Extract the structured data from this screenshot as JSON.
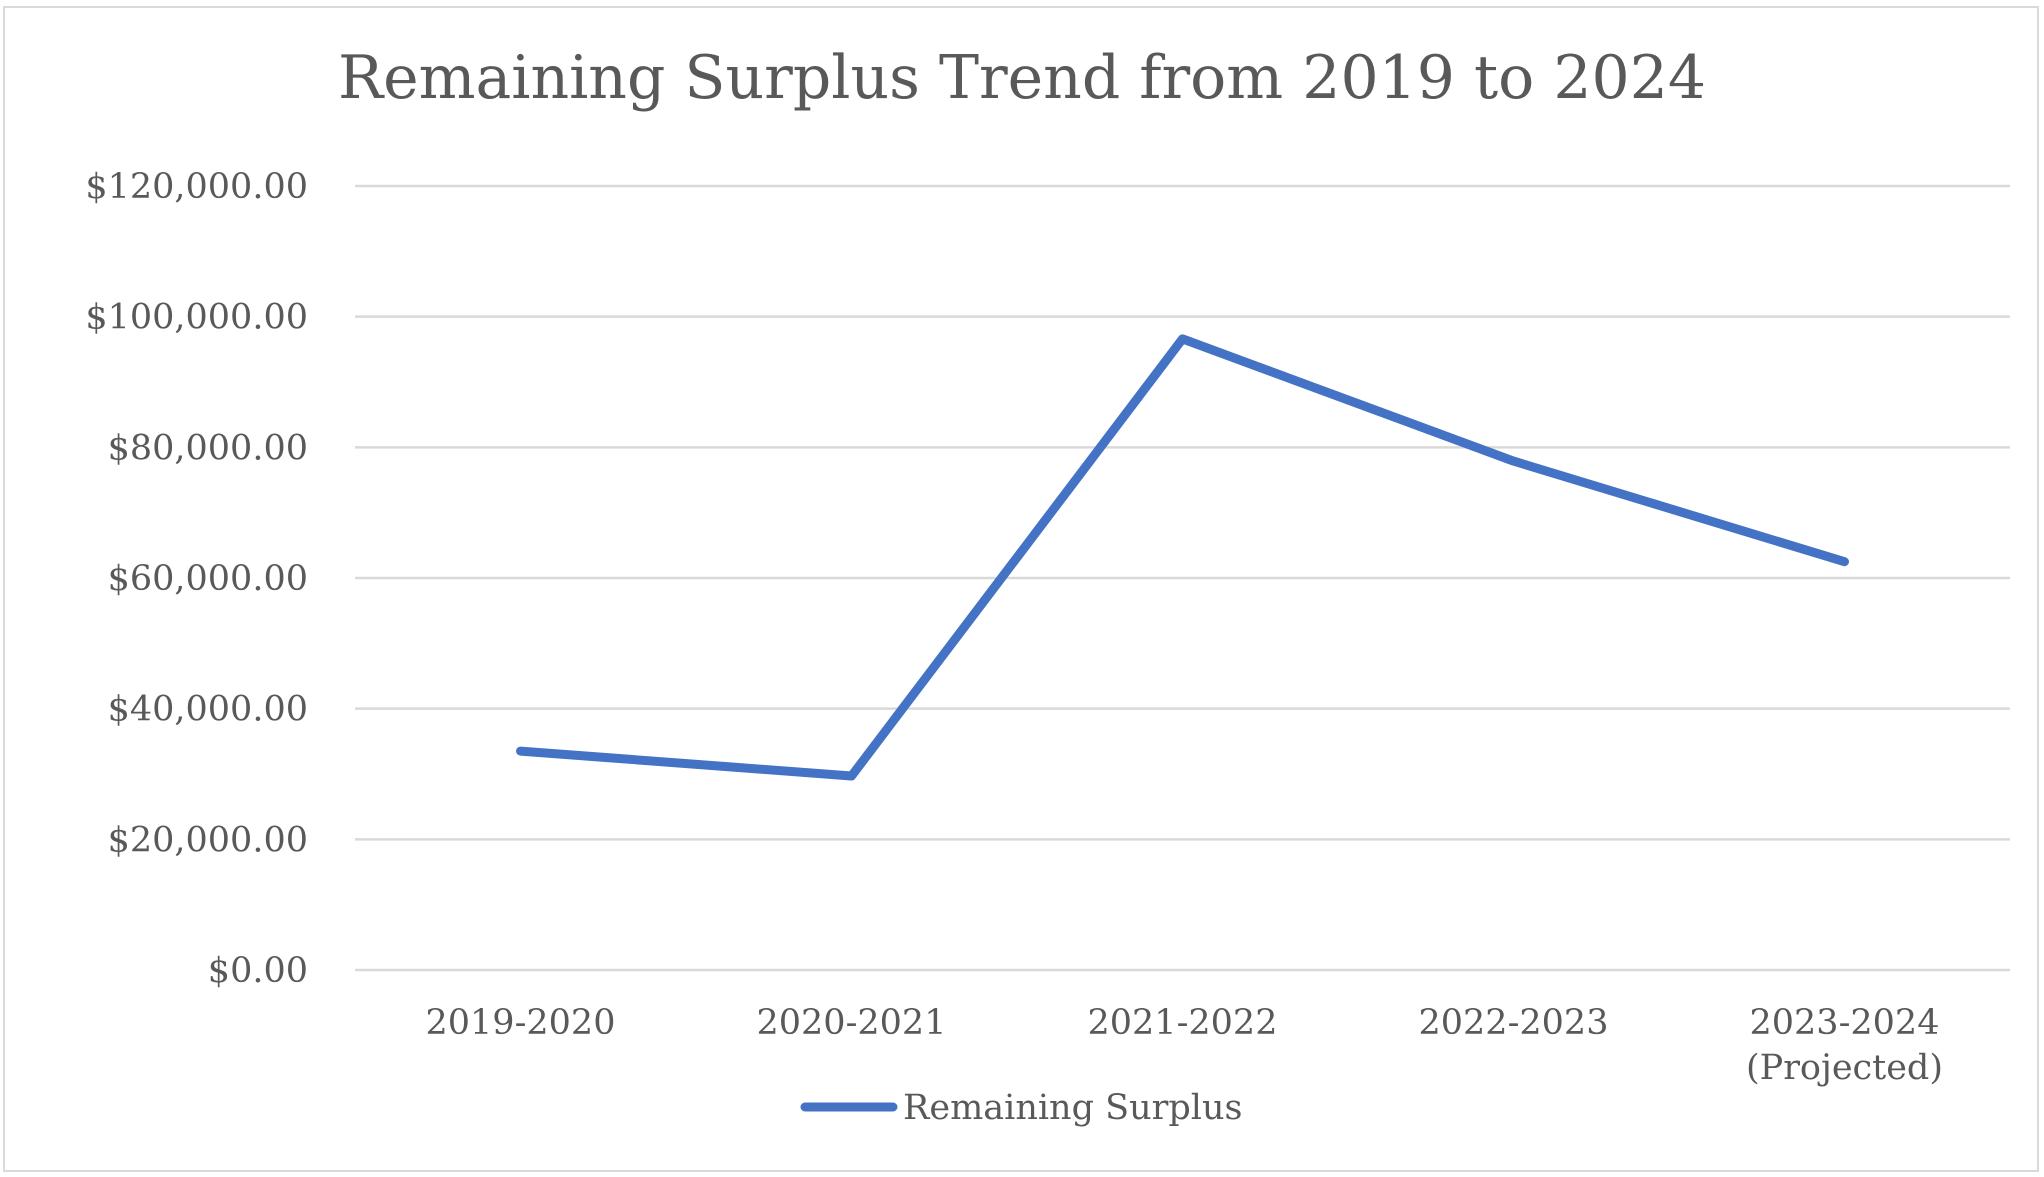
{
  "chart_data": {
    "type": "line",
    "title": "Remaining Surplus Trend from 2019 to 2024",
    "xlabel": "",
    "ylabel": "",
    "categories": [
      "2019-2020",
      "2020-2021",
      "2021-2022",
      "2022-2023",
      "2023-2024 (Projected)"
    ],
    "category_lines": [
      [
        "2019-2020"
      ],
      [
        "2020-2021"
      ],
      [
        "2021-2022"
      ],
      [
        "2022-2023"
      ],
      [
        "2023-2024",
        "(Projected)"
      ]
    ],
    "series": [
      {
        "name": "Remaining Surplus",
        "color": "#4472c4",
        "values": [
          33500,
          29700,
          96600,
          77900,
          62500
        ]
      }
    ],
    "ylim": [
      0,
      120000
    ],
    "yticks": [
      0,
      20000,
      40000,
      60000,
      80000,
      100000,
      120000
    ],
    "ytick_labels": [
      "$0.00",
      "$20,000.00",
      "$40,000.00",
      "$60,000.00",
      "$80,000.00",
      "$100,000.00",
      "$120,000.00"
    ],
    "grid": true,
    "legend_position": "bottom"
  }
}
